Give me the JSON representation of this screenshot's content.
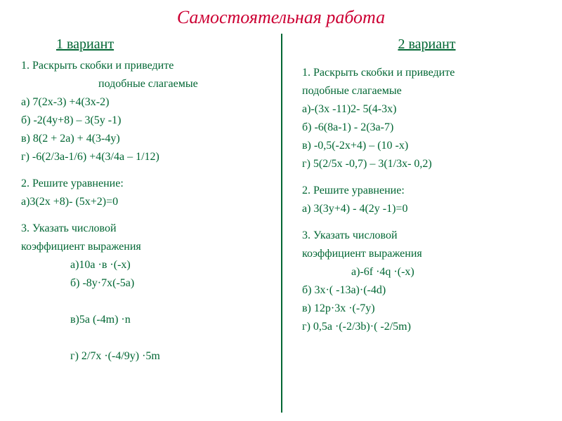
{
  "title": "Самостоятельная работа",
  "colors": {
    "title": "#cc0033",
    "body": "#006633",
    "divider": "#006633",
    "background": "#ffffff"
  },
  "fonts": {
    "title_size": 26,
    "title_style": "italic",
    "variant_size": 20,
    "body_size": 16,
    "family": "Times New Roman"
  },
  "left": {
    "variant": "1 вариант",
    "task1_header": "1. Раскрыть скобки и приведите",
    "task1_header2": "подобные слагаемые",
    "task1_a": "а)  7(2х-3) +4(3х-2)",
    "task1_b": "б) -2(4у+8) – 3(5у -1)",
    "task1_c": "в)  8(2 + 2а) + 4(3-4у)",
    "task1_d": "г)  -6(2/3а-1/6) +4(3/4а – 1/12)",
    "task2_header": "2. Решите уравнение:",
    "task2_a": "а)3(2х +8)- (5х+2)=0",
    "task3_header": "3. Указать числовой",
    "task3_header2": "коэффициент выражения",
    "task3_a": "а)10а ·в ·(-х)",
    "task3_b": "б) -8у·7х(-5а)",
    "task3_c": "в)5а (-4m) ·n",
    "task3_d": "г) 2/7х ·(-4/9у) ·5m"
  },
  "right": {
    "variant": "2 вариант",
    "task1_header": "1. Раскрыть скобки и приведите",
    "task1_header2": "подобные  слагаемые",
    "task1_a": "а)-(3х -11)2- 5(4-3х)",
    "task1_b": "б) -6(8а-1) - 2(3а-7)",
    "task1_c": "в) -0,5(-2х+4) – (10 -х)",
    "task1_d": "г)  5(2/5х -0,7) – 3(1/3х- 0,2)",
    "task2_header": "2. Решите уравнение:",
    "task2_a": "а) 3(3у+4) - 4(2у -1)=0",
    "task3_header": "3. Указать числовой",
    "task3_header2": "коэффициент  выражения",
    "task3_a": "а)-6f ·4q ·(-х)",
    "task3_b": "б) 3х·( -13а)·(-4d)",
    "task3_c": "в) 12р·3х ·(-7у)",
    "task3_d": "г) 0,5а ·(-2/3b)·( -2/5m)"
  }
}
